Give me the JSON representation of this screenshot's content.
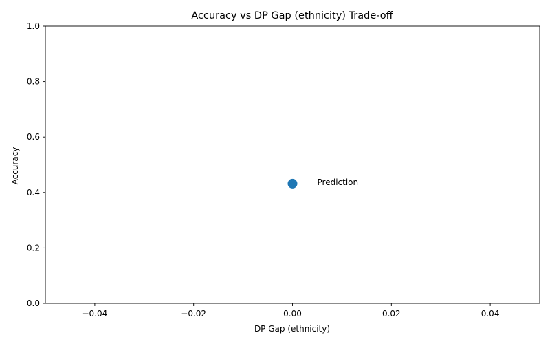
{
  "chart_data": {
    "type": "scatter",
    "title": "Accuracy vs DP Gap (ethnicity) Trade-off",
    "xlabel": "DP Gap (ethnicity)",
    "ylabel": "Accuracy",
    "xlim": [
      -0.05,
      0.05
    ],
    "ylim": [
      0.0,
      1.0
    ],
    "xticks": [
      -0.04,
      -0.02,
      0.0,
      0.02,
      0.04
    ],
    "xtick_labels": [
      "−0.04",
      "−0.02",
      "0.00",
      "0.02",
      "0.04"
    ],
    "yticks": [
      0.0,
      0.2,
      0.4,
      0.6,
      0.8,
      1.0
    ],
    "ytick_labels": [
      "0.0",
      "0.2",
      "0.4",
      "0.6",
      "0.8",
      "1.0"
    ],
    "grid": false,
    "points": [
      {
        "x": 0.0,
        "y": 0.432,
        "label": "Prediction",
        "color": "#1f77b4"
      }
    ]
  }
}
